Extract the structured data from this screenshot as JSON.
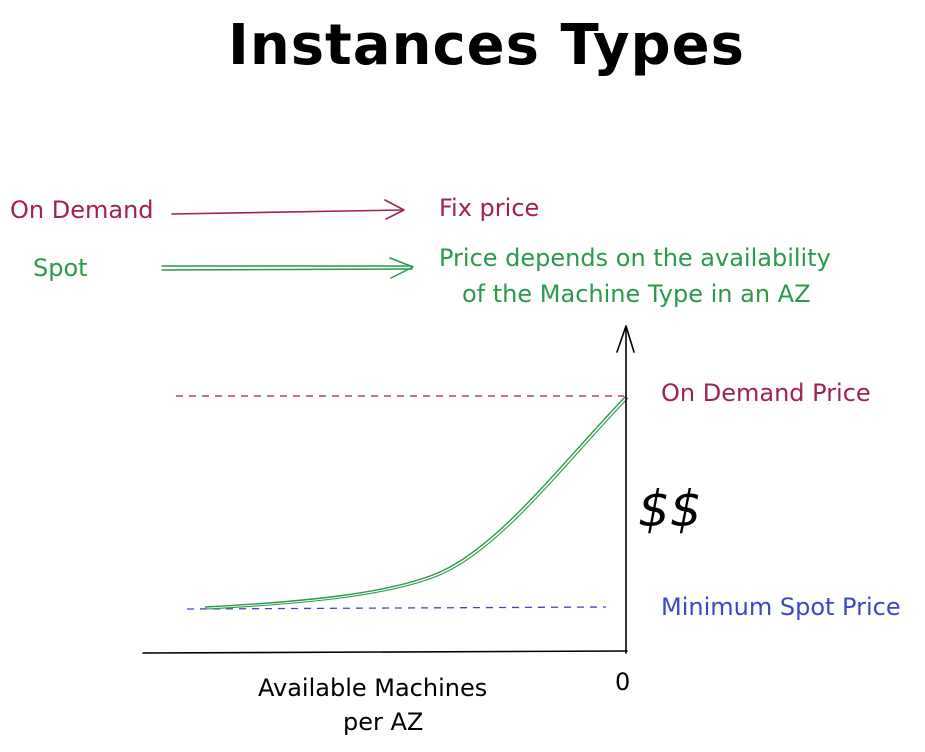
{
  "title": "Instances Types",
  "rows": {
    "on_demand": {
      "label": "On Demand",
      "result": "Fix price"
    },
    "spot": {
      "label": "Spot",
      "result_line1": "Price depends on the availability",
      "result_line2": "of the Machine Type in an AZ"
    }
  },
  "graph": {
    "on_demand_price_label": "On Demand Price",
    "min_spot_price_label": "Minimum Spot Price",
    "y_label": "$$",
    "x_label_line1": "Available Machines",
    "x_label_line2": "per AZ",
    "origin_label": "0"
  },
  "colors": {
    "on_demand": "#a3214f",
    "spot": "#2b9a4a",
    "min_spot": "#3b47c8",
    "axis": "#000000"
  }
}
